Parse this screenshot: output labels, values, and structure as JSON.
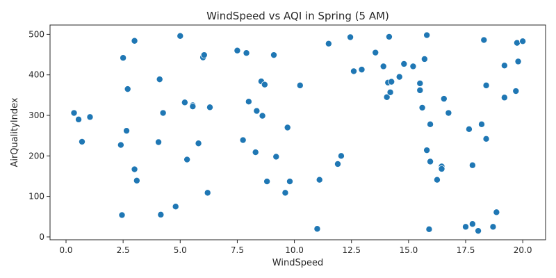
{
  "chart_data": {
    "type": "scatter",
    "title": "WindSpeed vs AQI in Spring (5 AM)",
    "xlabel": "WindSpeed",
    "ylabel": "AirQualityIndex",
    "xlim": [
      -0.7,
      21.0
    ],
    "ylim": [
      -7,
      523
    ],
    "xticks": [
      0.0,
      2.5,
      5.0,
      7.5,
      10.0,
      12.5,
      15.0,
      17.5,
      20.0
    ],
    "xtick_labels": [
      "0.0",
      "2.5",
      "5.0",
      "7.5",
      "10.0",
      "12.5",
      "15.0",
      "17.5",
      "20.0"
    ],
    "yticks": [
      0,
      100,
      200,
      300,
      400,
      500
    ],
    "ytick_labels": [
      "0",
      "100",
      "200",
      "300",
      "400",
      "500"
    ],
    "grid": false,
    "color": "#1f77b4",
    "points": [
      {
        "x": 0.35,
        "y": 306
      },
      {
        "x": 0.55,
        "y": 290
      },
      {
        "x": 0.7,
        "y": 235
      },
      {
        "x": 1.05,
        "y": 296
      },
      {
        "x": 2.4,
        "y": 227
      },
      {
        "x": 2.45,
        "y": 54
      },
      {
        "x": 2.5,
        "y": 442
      },
      {
        "x": 2.65,
        "y": 262
      },
      {
        "x": 2.7,
        "y": 365
      },
      {
        "x": 3.0,
        "y": 484
      },
      {
        "x": 3.0,
        "y": 167
      },
      {
        "x": 3.1,
        "y": 139
      },
      {
        "x": 4.05,
        "y": 234
      },
      {
        "x": 4.1,
        "y": 389
      },
      {
        "x": 4.15,
        "y": 55
      },
      {
        "x": 4.25,
        "y": 306
      },
      {
        "x": 4.8,
        "y": 75
      },
      {
        "x": 5.0,
        "y": 496
      },
      {
        "x": 5.2,
        "y": 332
      },
      {
        "x": 5.3,
        "y": 191
      },
      {
        "x": 5.55,
        "y": 325
      },
      {
        "x": 5.55,
        "y": 322
      },
      {
        "x": 5.8,
        "y": 231
      },
      {
        "x": 6.0,
        "y": 443
      },
      {
        "x": 6.05,
        "y": 449
      },
      {
        "x": 6.2,
        "y": 109
      },
      {
        "x": 6.3,
        "y": 320
      },
      {
        "x": 7.5,
        "y": 460
      },
      {
        "x": 7.75,
        "y": 239
      },
      {
        "x": 7.9,
        "y": 454
      },
      {
        "x": 8.0,
        "y": 334
      },
      {
        "x": 8.3,
        "y": 209
      },
      {
        "x": 8.35,
        "y": 311
      },
      {
        "x": 8.55,
        "y": 384
      },
      {
        "x": 8.6,
        "y": 299
      },
      {
        "x": 8.7,
        "y": 376
      },
      {
        "x": 8.8,
        "y": 137
      },
      {
        "x": 9.1,
        "y": 449
      },
      {
        "x": 9.2,
        "y": 198
      },
      {
        "x": 9.6,
        "y": 109
      },
      {
        "x": 9.7,
        "y": 270
      },
      {
        "x": 9.8,
        "y": 137
      },
      {
        "x": 10.25,
        "y": 374
      },
      {
        "x": 11.0,
        "y": 20
      },
      {
        "x": 11.1,
        "y": 141
      },
      {
        "x": 11.5,
        "y": 477
      },
      {
        "x": 11.9,
        "y": 180
      },
      {
        "x": 12.05,
        "y": 200
      },
      {
        "x": 12.45,
        "y": 493
      },
      {
        "x": 12.6,
        "y": 409
      },
      {
        "x": 12.95,
        "y": 413
      },
      {
        "x": 13.55,
        "y": 455
      },
      {
        "x": 13.9,
        "y": 421
      },
      {
        "x": 14.05,
        "y": 345
      },
      {
        "x": 14.1,
        "y": 381
      },
      {
        "x": 14.15,
        "y": 494
      },
      {
        "x": 14.2,
        "y": 357
      },
      {
        "x": 14.25,
        "y": 383
      },
      {
        "x": 14.6,
        "y": 395
      },
      {
        "x": 14.8,
        "y": 427
      },
      {
        "x": 15.2,
        "y": 421
      },
      {
        "x": 15.5,
        "y": 362
      },
      {
        "x": 15.5,
        "y": 379
      },
      {
        "x": 15.6,
        "y": 319
      },
      {
        "x": 15.7,
        "y": 439
      },
      {
        "x": 15.8,
        "y": 498
      },
      {
        "x": 15.8,
        "y": 214
      },
      {
        "x": 15.9,
        "y": 19
      },
      {
        "x": 15.95,
        "y": 278
      },
      {
        "x": 15.95,
        "y": 186
      },
      {
        "x": 16.25,
        "y": 141
      },
      {
        "x": 16.45,
        "y": 174
      },
      {
        "x": 16.45,
        "y": 168
      },
      {
        "x": 16.55,
        "y": 341
      },
      {
        "x": 16.75,
        "y": 306
      },
      {
        "x": 17.5,
        "y": 25
      },
      {
        "x": 17.65,
        "y": 266
      },
      {
        "x": 17.8,
        "y": 177
      },
      {
        "x": 17.8,
        "y": 32
      },
      {
        "x": 18.05,
        "y": 15
      },
      {
        "x": 18.2,
        "y": 278
      },
      {
        "x": 18.3,
        "y": 486
      },
      {
        "x": 18.4,
        "y": 374
      },
      {
        "x": 18.4,
        "y": 242
      },
      {
        "x": 18.7,
        "y": 25
      },
      {
        "x": 18.85,
        "y": 61
      },
      {
        "x": 19.2,
        "y": 344
      },
      {
        "x": 19.2,
        "y": 423
      },
      {
        "x": 19.7,
        "y": 360
      },
      {
        "x": 19.75,
        "y": 479
      },
      {
        "x": 19.8,
        "y": 433
      },
      {
        "x": 20.0,
        "y": 483
      }
    ]
  }
}
